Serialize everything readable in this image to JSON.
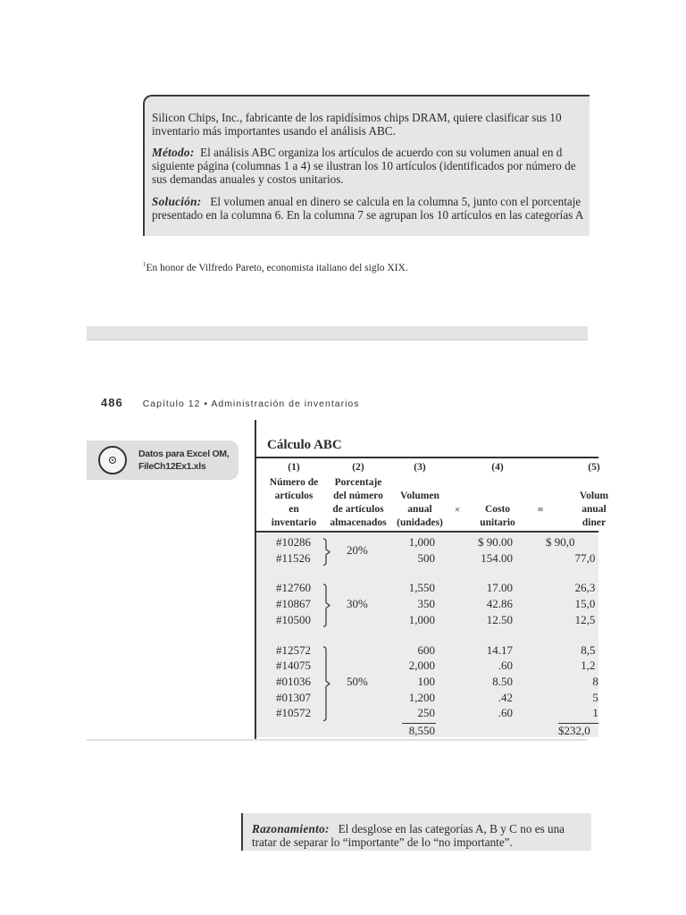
{
  "problem_box": {
    "intro_line1": "Silicon Chips, Inc., fabricante de los rapidísimos chips DRAM, quiere clasificar sus 10",
    "intro_line2": "inventario más importantes usando el análisis ABC.",
    "method_label": "Método:",
    "method_line1": "El análisis ABC organiza los artículos de acuerdo con su volumen anual en d",
    "method_line2": "siguiente página (columnas 1 a 4) se ilustran los 10 artículos (identificados por número de",
    "method_line3": "sus demandas anuales y costos unitarios.",
    "solution_label": "Solución:",
    "solution_line1": "El volumen anual en dinero se calcula en la columna 5, junto con el porcentaje",
    "solution_line2": "presentado en la columna 6. En la columna 7 se agrupan los 10 artículos en las categorías A"
  },
  "footnote": {
    "mark": "1",
    "text": "En honor de Vilfredo Pareto, economista italiano del siglo XIX."
  },
  "page_header": {
    "page_number": "486",
    "chapter": "Capítulo 12  •  Administración de inventarios"
  },
  "callout": {
    "icon": "cd-disc-icon",
    "line1": "Datos para Excel OM,",
    "line2": "FileCh12Ex1.xls"
  },
  "table": {
    "title": "Cálculo ABC",
    "columns": [
      {
        "num": "(1)",
        "lines": [
          "Número de",
          "artículos",
          "en",
          "inventario"
        ]
      },
      {
        "num": "(2)",
        "lines": [
          "Porcentaje",
          "del número",
          "de artículos",
          "almacenados"
        ]
      },
      {
        "num": "(3)",
        "lines": [
          "Volumen",
          "anual",
          "(unidades)"
        ]
      },
      {
        "num": "(4)",
        "lines": [
          "Costo",
          "unitario"
        ]
      },
      {
        "num": "(5)",
        "lines": [
          "Volum",
          "anual",
          "diner"
        ]
      }
    ],
    "times_sign": "×",
    "equals_sign": "=",
    "groups": [
      {
        "percent": "20%",
        "rows": [
          {
            "item": "#10286",
            "volume": "1,000",
            "cost": "$ 90.00",
            "dollar": "$ 90,0"
          },
          {
            "item": "#11526",
            "volume": "500",
            "cost": "154.00",
            "dollar": "77,0"
          }
        ]
      },
      {
        "percent": "30%",
        "rows": [
          {
            "item": "#12760",
            "volume": "1,550",
            "cost": "17.00",
            "dollar": "26,3"
          },
          {
            "item": "#10867",
            "volume": "350",
            "cost": "42.86",
            "dollar": "15,0"
          },
          {
            "item": "#10500",
            "volume": "1,000",
            "cost": "12.50",
            "dollar": "12,5"
          }
        ]
      },
      {
        "percent": "50%",
        "rows": [
          {
            "item": "#12572",
            "volume": "600",
            "cost": "14.17",
            "dollar": "8,5"
          },
          {
            "item": "#14075",
            "volume": "2,000",
            "cost": ".60",
            "dollar": "1,2"
          },
          {
            "item": "#01036",
            "volume": "100",
            "cost": "8.50",
            "dollar": "8"
          },
          {
            "item": "#01307",
            "volume": "1,200",
            "cost": ".42",
            "dollar": "5"
          },
          {
            "item": "#10572",
            "volume": "250",
            "cost": ".60",
            "dollar": "1"
          }
        ]
      }
    ],
    "total_volume": "8,550",
    "total_dollar": "$232,0"
  },
  "reasoning_box": {
    "label": "Razonamiento:",
    "line1": "El desglose en las categorías A, B y C no es una",
    "line2": "tratar de separar lo “importante” de lo “no importante”."
  }
}
